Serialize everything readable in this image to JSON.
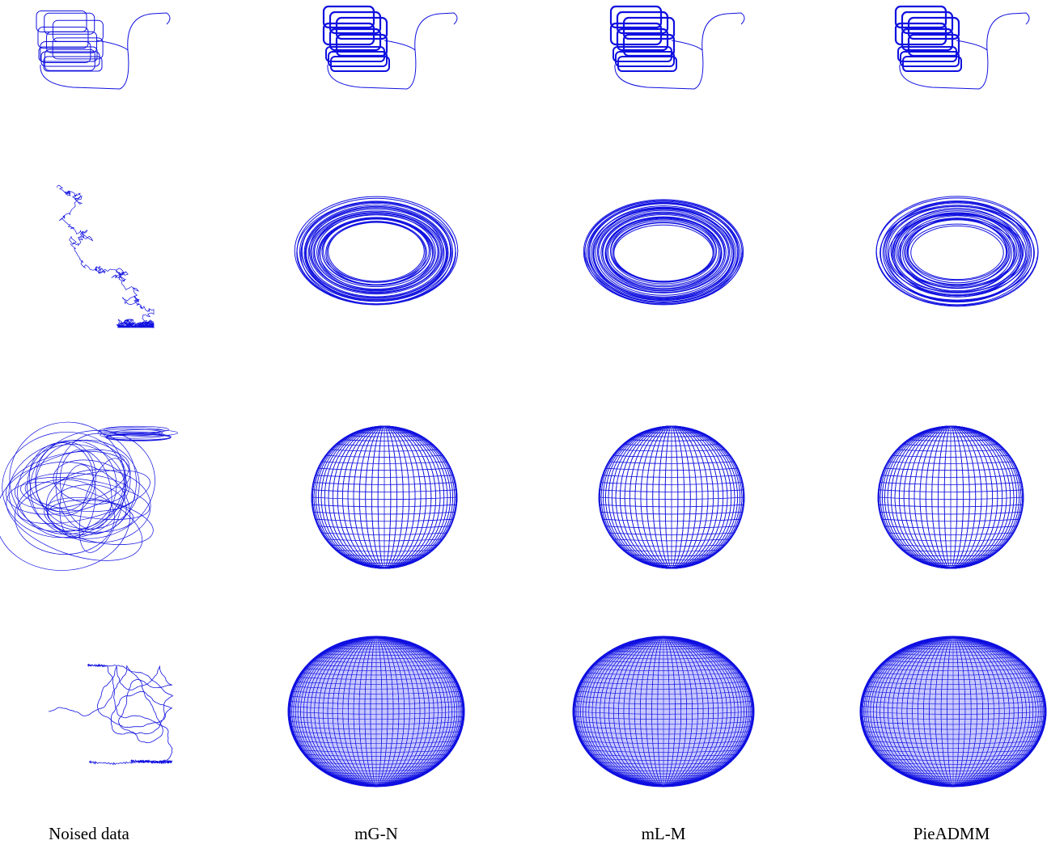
{
  "figure": {
    "column_labels": [
      "Noised data",
      "mG-N",
      "mL-M",
      "PieADMM"
    ]
  }
}
